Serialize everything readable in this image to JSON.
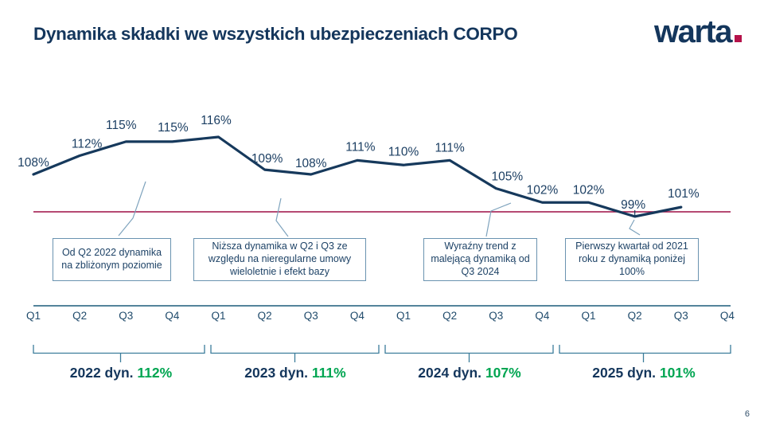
{
  "header": {
    "title": "Dynamika składki we wszystkich ubezpieczeniach CORPO",
    "logo": {
      "text": "warta",
      "dot": "."
    }
  },
  "page_number": "6",
  "chart_data": {
    "type": "line",
    "title": "Dynamika składki we wszystkich ubezpieczeniach CORPO",
    "unit": "%",
    "x_labels": [
      "Q1",
      "Q2",
      "Q3",
      "Q4",
      "Q1",
      "Q2",
      "Q3",
      "Q4",
      "Q1",
      "Q2",
      "Q3",
      "Q4",
      "Q1",
      "Q2",
      "Q3",
      "Q4"
    ],
    "years": [
      "2022",
      "2023",
      "2024",
      "2025"
    ],
    "series": [
      {
        "name": "Dynamika składki CORPO",
        "values": [
          108,
          112,
          115,
          115,
          116,
          109,
          108,
          111,
          110,
          111,
          105,
          102,
          102,
          99,
          101
        ]
      }
    ],
    "reference_line": {
      "value": 100
    },
    "ylim": [
      96,
      120
    ],
    "grid": false,
    "legend": false,
    "year_groups": [
      {
        "label": "2022 dyn.",
        "value": "112%"
      },
      {
        "label": "2023 dyn.",
        "value": "111%"
      },
      {
        "label": "2024 dyn.",
        "value": "107%"
      },
      {
        "label": "2025 dyn.",
        "value": "101%"
      }
    ],
    "annotations": [
      "Od Q2 2022 dynamika na zbliżonym poziomie",
      "Niższa dynamika w Q2 i Q3 ze względu na nieregularne umowy wieloletnie i efekt bazy",
      "Wyraźny trend z malejącą dynamiką od Q3 2024",
      "Pierwszy kwartał od 2021 roku z dynamiką poniżej 100%"
    ],
    "colors": {
      "line": "#16395c",
      "value_labels": "#1c3f63",
      "reference": "#9e0e45",
      "axis": "#1c5c7a",
      "bracket": "#3c7d9b",
      "green": "#00a551",
      "navy": "#14365c",
      "connector": "#7ea3bd",
      "box_border": "#6a93b0"
    }
  }
}
